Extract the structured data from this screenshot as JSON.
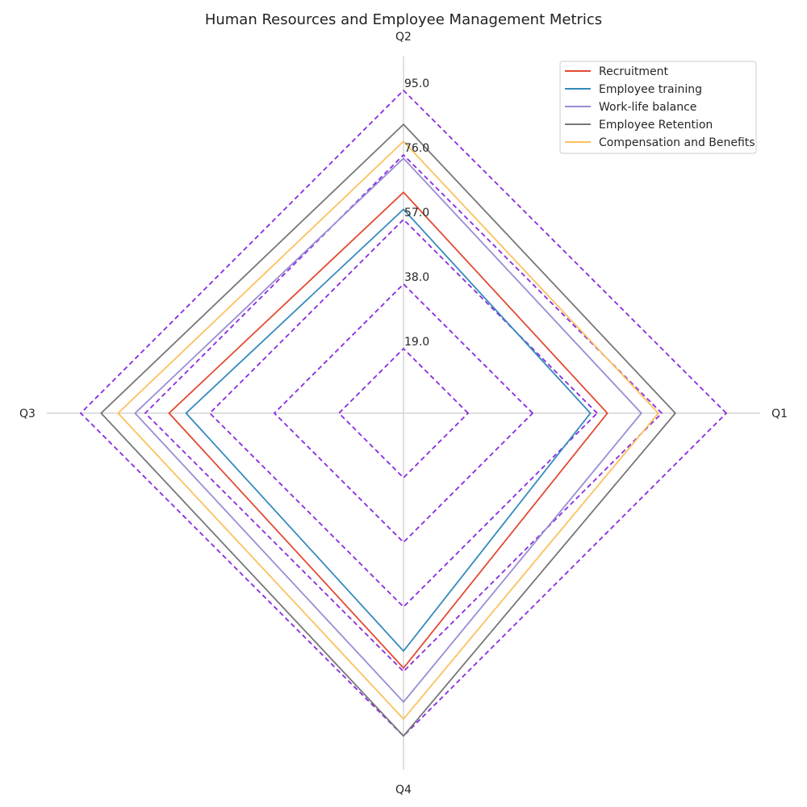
{
  "chart_data": {
    "type": "radar",
    "title": "Human Resources and Employee Management Metrics",
    "categories": [
      "Q1",
      "Q2",
      "Q3",
      "Q4"
    ],
    "rmax": 95,
    "ticks": [
      19.0,
      38.0,
      57.0,
      76.0,
      95.0
    ],
    "tick_labels": [
      "19.0",
      "38.0",
      "57.0",
      "76.0",
      "95.0"
    ],
    "grid_color": "#8a2be2",
    "axis_color": "#cccccc",
    "legend_position": "top-right",
    "series": [
      {
        "name": "Recruitment",
        "values": [
          60,
          65,
          69,
          75
        ],
        "color": "#e24a33"
      },
      {
        "name": "Employee training",
        "values": [
          55,
          60,
          64,
          70
        ],
        "color": "#348abd"
      },
      {
        "name": "Work-life balance",
        "values": [
          70,
          75,
          79,
          85
        ],
        "color": "#988ed5"
      },
      {
        "name": "Employee Retention",
        "values": [
          80,
          85,
          89,
          95
        ],
        "color": "#777777"
      },
      {
        "name": "Compensation and Benefits",
        "values": [
          75,
          80,
          84,
          90
        ],
        "color": "#fbc15e"
      }
    ]
  }
}
